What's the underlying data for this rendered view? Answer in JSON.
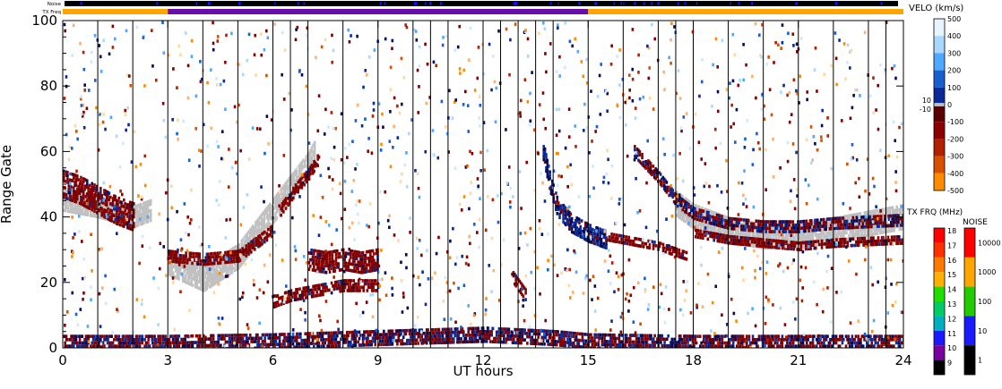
{
  "top_bars": {
    "noise_label": "Noise",
    "txfreq_label": "TX Freq",
    "noise_color": "#000000",
    "noise_accent": "#1010ff",
    "txfreq_segments": [
      {
        "start": 0,
        "end": 3,
        "color": "#ffa500"
      },
      {
        "start": 3,
        "end": 15,
        "color": "#6a0dad"
      },
      {
        "start": 15,
        "end": 24,
        "color": "#ffa500"
      }
    ]
  },
  "chart_data": {
    "type": "heatmap",
    "xlabel": "UT hours",
    "ylabel": "Range Gate",
    "xlim": [
      0,
      24
    ],
    "ylim": [
      0,
      100
    ],
    "xticks": [
      0,
      3,
      6,
      9,
      12,
      15,
      18,
      21,
      24
    ],
    "yticks": [
      0,
      20,
      40,
      60,
      80,
      100
    ],
    "minor_xtick_hours": [
      1,
      2,
      4,
      5,
      7,
      8,
      10,
      11,
      13,
      14,
      16,
      17,
      19,
      20,
      22,
      23
    ],
    "grid": false,
    "scan_lines_ut": [
      1,
      2,
      3,
      4,
      5,
      6,
      6.5,
      7,
      8,
      9,
      10,
      10.5,
      11,
      12,
      12.5,
      13,
      13.5,
      14,
      15,
      16,
      17,
      17.5,
      18,
      19,
      20,
      21,
      22,
      23,
      23.5
    ],
    "ground_scatter_color": "#c0c0c0",
    "ground_scatter_bands": [
      {
        "name": "",
        "points": [
          [
            0,
            45
          ],
          [
            1,
            43
          ],
          [
            2,
            40
          ],
          [
            2.5,
            42
          ]
        ],
        "width": 6
      },
      {
        "name": "",
        "points": [
          [
            3,
            26
          ],
          [
            4,
            21
          ],
          [
            5,
            28
          ],
          [
            6,
            42
          ],
          [
            7,
            56
          ],
          [
            7.2,
            60
          ]
        ],
        "width": 7
      },
      {
        "name": "",
        "points": [
          [
            17.5,
            44
          ],
          [
            18,
            40
          ],
          [
            19,
            36
          ],
          [
            20,
            34
          ],
          [
            21,
            34
          ],
          [
            22,
            36
          ],
          [
            23,
            38
          ],
          [
            24,
            40
          ]
        ],
        "width": 7
      }
    ],
    "velocity_bands": [
      {
        "name": "",
        "points": [
          [
            0,
            50
          ],
          [
            0.5,
            48
          ],
          [
            1,
            45
          ],
          [
            1.5,
            42
          ],
          [
            2,
            40
          ]
        ],
        "width": 8,
        "sign": "negative"
      },
      {
        "name": "",
        "points": [
          [
            3,
            28
          ],
          [
            4,
            27
          ],
          [
            5,
            28
          ],
          [
            6,
            36
          ]
        ],
        "width": 3,
        "sign": "negative"
      },
      {
        "name": "",
        "points": [
          [
            6.2,
            42
          ],
          [
            6.6,
            48
          ],
          [
            7,
            53
          ],
          [
            7.3,
            58
          ]
        ],
        "width": 3,
        "sign": "negative"
      },
      {
        "name": "",
        "points": [
          [
            7,
            27
          ],
          [
            7.5,
            26
          ],
          [
            8,
            27
          ],
          [
            8.5,
            26
          ],
          [
            9,
            27
          ]
        ],
        "width": 6,
        "sign": "negative"
      },
      {
        "name": "",
        "points": [
          [
            6,
            14
          ],
          [
            6.5,
            16
          ],
          [
            7,
            17
          ],
          [
            7.5,
            18
          ],
          [
            8,
            19
          ],
          [
            9,
            19
          ]
        ],
        "width": 3,
        "sign": "negative"
      },
      {
        "name": "",
        "points": [
          [
            13.7,
            60
          ],
          [
            13.9,
            50
          ],
          [
            14.1,
            43
          ],
          [
            14.5,
            38
          ],
          [
            15,
            35
          ],
          [
            15.5,
            33
          ]
        ],
        "width": 5,
        "sign": "positive"
      },
      {
        "name": "",
        "points": [
          [
            15.5,
            34
          ],
          [
            16,
            33
          ],
          [
            17,
            31
          ],
          [
            17.8,
            28
          ]
        ],
        "width": 2,
        "sign": "negative"
      },
      {
        "name": "",
        "points": [
          [
            12.8,
            22
          ],
          [
            13,
            19
          ],
          [
            13.2,
            16
          ]
        ],
        "width": 3,
        "sign": "negative"
      },
      {
        "name": "",
        "points": [
          [
            16.3,
            60
          ],
          [
            17,
            52
          ],
          [
            17.5,
            45
          ],
          [
            18,
            41
          ],
          [
            19,
            38
          ],
          [
            20,
            37
          ],
          [
            21,
            37
          ],
          [
            22,
            38
          ],
          [
            24,
            39
          ]
        ],
        "width": 3,
        "sign": "mixed"
      },
      {
        "name": "",
        "points": [
          [
            18,
            35
          ],
          [
            19,
            33
          ],
          [
            20,
            32
          ],
          [
            21,
            31
          ],
          [
            22,
            32
          ],
          [
            24,
            33
          ]
        ],
        "width": 2,
        "sign": "negative"
      },
      {
        "name": "",
        "points": [
          [
            0,
            1.5
          ],
          [
            3,
            1.5
          ],
          [
            6,
            2
          ],
          [
            9,
            3
          ],
          [
            12,
            4
          ],
          [
            14,
            3
          ],
          [
            15,
            2
          ],
          [
            18,
            1.5
          ],
          [
            24,
            1.5
          ]
        ],
        "width": 4,
        "sign": "mixed"
      }
    ],
    "colorbar_velocity": {
      "title": "VELO (km/s)",
      "labels": [
        "500",
        "400",
        "300",
        "200",
        "100",
        "0",
        "10",
        "-10",
        "-100",
        "-200",
        "-300",
        "-400",
        "-500"
      ],
      "stops": [
        {
          "value": 500,
          "color": "#e8f4ff"
        },
        {
          "value": 400,
          "color": "#a8d8ff"
        },
        {
          "value": 300,
          "color": "#4fa8ff"
        },
        {
          "value": 200,
          "color": "#1a5fd0"
        },
        {
          "value": 100,
          "color": "#0a2a9a"
        },
        {
          "value": 0,
          "color": "#030a5a"
        },
        {
          "value": -0.1,
          "color": "#5a0000"
        },
        {
          "value": -100,
          "color": "#8b0000"
        },
        {
          "value": -200,
          "color": "#b22000"
        },
        {
          "value": -300,
          "color": "#d85000"
        },
        {
          "value": -400,
          "color": "#ff8c00"
        },
        {
          "value": -500,
          "color": "#ffd8a0"
        }
      ]
    },
    "colorbar_txfreq": {
      "title": "TX FRQ (MHz)",
      "labels": [
        "18",
        "17",
        "16",
        "15",
        "14",
        "13",
        "12",
        "11",
        "10",
        "9"
      ],
      "colors": [
        "#ff0000",
        "#ff3000",
        "#ff7a00",
        "#ffb000",
        "#22dd00",
        "#00cc66",
        "#00b0c0",
        "#1a1aff",
        "#7a00a0",
        "#000000"
      ]
    },
    "colorbar_noise": {
      "title": "NOISE",
      "labels": [
        "10000",
        "1000",
        "100",
        "10",
        "1"
      ],
      "colors": [
        "#ff0000",
        "#ffa500",
        "#22cc00",
        "#1a1aff",
        "#000000"
      ]
    }
  }
}
